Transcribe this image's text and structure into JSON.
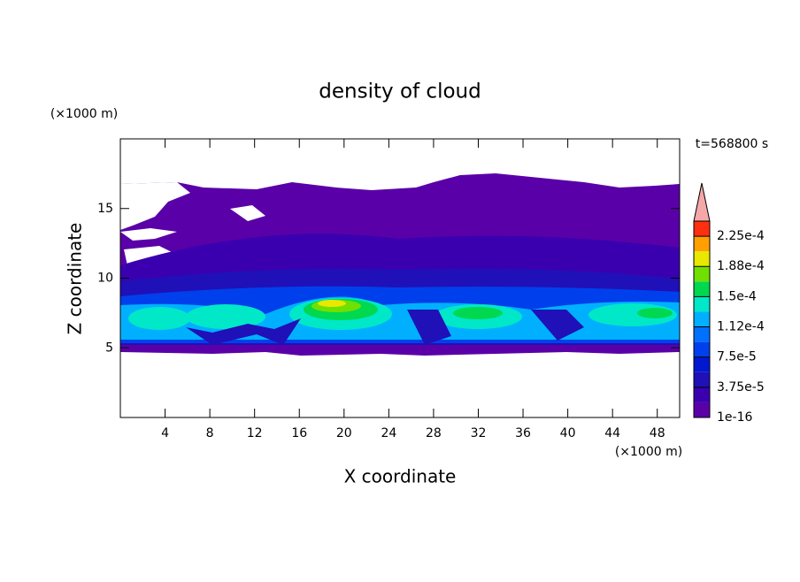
{
  "chart_data": {
    "type": "contour",
    "title": "density of cloud",
    "x_label": "X coordinate",
    "y_label": "Z coordinate",
    "x_unit": "(×1000 m)",
    "y_unit": "(×1000 m)",
    "time_label": "t=568800 s",
    "xlim": [
      0,
      50
    ],
    "xticks": [
      4,
      8,
      12,
      16,
      20,
      24,
      28,
      32,
      36,
      40,
      44,
      48
    ],
    "ylim": [
      0,
      20
    ],
    "yticks": [
      5,
      10,
      15
    ],
    "colorbar": {
      "levels": [
        1e-16,
        1.875e-05,
        3.75e-05,
        5.625e-05,
        7.5e-05,
        9.375e-05,
        0.0001125,
        0.00013125,
        0.00015,
        0.00016875,
        0.0001875,
        0.00020625,
        0.000225,
        0.00024375
      ],
      "colors": [
        "#5a00a8",
        "#3a00b0",
        "#2010b8",
        "#0018d0",
        "#0040ec",
        "#0070ff",
        "#00b0ff",
        "#00e8c8",
        "#00d850",
        "#70e000",
        "#e8e800",
        "#ffa000",
        "#ff3010"
      ],
      "extend_color": "#f4a8a8",
      "ticks": [
        {
          "value": 1e-16,
          "label": "1e-16"
        },
        {
          "value": 3.75e-05,
          "label": "3.75e-5"
        },
        {
          "value": 7.5e-05,
          "label": "7.5e-5"
        },
        {
          "value": 0.0001125,
          "label": "1.12e-4"
        },
        {
          "value": 0.00015,
          "label": "1.5e-4"
        },
        {
          "value": 0.0001875,
          "label": "1.88e-4"
        },
        {
          "value": 0.000225,
          "label": "2.25e-4"
        }
      ]
    }
  }
}
